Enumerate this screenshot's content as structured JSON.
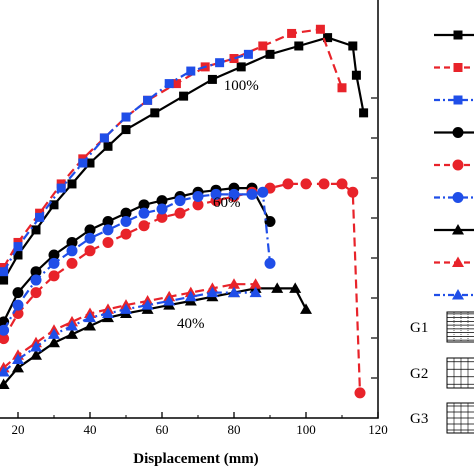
{
  "chart_data": {
    "type": "line",
    "xlabel": "Displacement (mm)",
    "ylabel": "",
    "xlim": [
      15,
      120
    ],
    "ylim": [
      0,
      1
    ],
    "x_ticks": [
      20,
      40,
      60,
      80,
      100,
      120
    ],
    "grid": false,
    "legend_placement": "right, outside plot",
    "annotations": [
      {
        "text": "100%",
        "x": 82,
        "y": 0.785
      },
      {
        "text": "60%",
        "x": 78,
        "y": 0.505
      },
      {
        "text": "40%",
        "x": 68,
        "y": 0.215
      }
    ],
    "series": [
      {
        "group": "100%",
        "color": "#000000",
        "dash": "solid",
        "marker": "square",
        "x": [
          16,
          20,
          25,
          30,
          35,
          40,
          45,
          50,
          58,
          66,
          74,
          82,
          90,
          98,
          106,
          113,
          114,
          116
        ],
        "y": [
          0.33,
          0.39,
          0.45,
          0.51,
          0.56,
          0.61,
          0.65,
          0.69,
          0.73,
          0.77,
          0.81,
          0.84,
          0.87,
          0.89,
          0.91,
          0.89,
          0.82,
          0.73
        ]
      },
      {
        "group": "100%",
        "color": "#e8232a",
        "dash": "dashed",
        "marker": "square",
        "x": [
          16,
          20,
          26,
          32,
          38,
          44,
          50,
          56,
          64,
          72,
          80,
          88,
          96,
          104,
          110
        ],
        "y": [
          0.36,
          0.42,
          0.49,
          0.56,
          0.62,
          0.67,
          0.72,
          0.76,
          0.8,
          0.84,
          0.86,
          0.89,
          0.92,
          0.93,
          0.79
        ]
      },
      {
        "group": "100%",
        "color": "#1f4ee8",
        "dash": "dashdot",
        "marker": "square",
        "x": [
          16,
          20,
          26,
          32,
          38,
          44,
          50,
          56,
          62,
          68,
          76,
          84
        ],
        "y": [
          0.35,
          0.41,
          0.48,
          0.55,
          0.61,
          0.67,
          0.72,
          0.76,
          0.8,
          0.83,
          0.85,
          0.87
        ]
      },
      {
        "group": "60%",
        "color": "#000000",
        "dash": "solid",
        "marker": "circle",
        "x": [
          16,
          20,
          25,
          30,
          35,
          40,
          45,
          50,
          55,
          60,
          65,
          70,
          75,
          80,
          85,
          90
        ],
        "y": [
          0.23,
          0.3,
          0.35,
          0.39,
          0.42,
          0.45,
          0.47,
          0.49,
          0.51,
          0.52,
          0.53,
          0.54,
          0.545,
          0.55,
          0.55,
          0.47
        ]
      },
      {
        "group": "60%",
        "color": "#e8232a",
        "dash": "dashed",
        "marker": "circle",
        "x": [
          16,
          20,
          25,
          30,
          35,
          40,
          45,
          50,
          55,
          60,
          65,
          70,
          75,
          80,
          85,
          90,
          95,
          100,
          105,
          110,
          113,
          115
        ],
        "y": [
          0.19,
          0.25,
          0.3,
          0.34,
          0.37,
          0.4,
          0.42,
          0.44,
          0.46,
          0.48,
          0.49,
          0.51,
          0.52,
          0.53,
          0.54,
          0.55,
          0.56,
          0.56,
          0.56,
          0.56,
          0.54,
          0.06
        ]
      },
      {
        "group": "60%",
        "color": "#1f4ee8",
        "dash": "dashdot",
        "marker": "circle",
        "x": [
          16,
          20,
          25,
          30,
          35,
          40,
          45,
          50,
          55,
          60,
          65,
          70,
          75,
          80,
          85,
          88,
          90
        ],
        "y": [
          0.21,
          0.27,
          0.33,
          0.37,
          0.4,
          0.43,
          0.45,
          0.47,
          0.49,
          0.5,
          0.52,
          0.53,
          0.535,
          0.535,
          0.535,
          0.54,
          0.37
        ]
      },
      {
        "group": "40%",
        "color": "#000000",
        "dash": "solid",
        "marker": "triangle",
        "x": [
          16,
          20,
          25,
          30,
          35,
          40,
          45,
          50,
          56,
          62,
          68,
          74,
          80,
          86,
          92,
          97,
          100
        ],
        "y": [
          0.08,
          0.12,
          0.15,
          0.18,
          0.2,
          0.22,
          0.24,
          0.25,
          0.26,
          0.27,
          0.28,
          0.29,
          0.3,
          0.31,
          0.31,
          0.31,
          0.26
        ]
      },
      {
        "group": "40%",
        "color": "#e8232a",
        "dash": "dashed",
        "marker": "triangle",
        "x": [
          16,
          20,
          25,
          30,
          35,
          40,
          45,
          50,
          56,
          62,
          68,
          74,
          80,
          86
        ],
        "y": [
          0.12,
          0.15,
          0.18,
          0.21,
          0.23,
          0.25,
          0.26,
          0.27,
          0.28,
          0.29,
          0.3,
          0.31,
          0.32,
          0.32
        ]
      },
      {
        "group": "40%",
        "color": "#1f4ee8",
        "dash": "dashdot",
        "marker": "triangle",
        "x": [
          16,
          20,
          25,
          30,
          35,
          40,
          45,
          50,
          56,
          62,
          68,
          74,
          80,
          86
        ],
        "y": [
          0.11,
          0.14,
          0.17,
          0.2,
          0.22,
          0.24,
          0.25,
          0.26,
          0.27,
          0.28,
          0.29,
          0.3,
          0.3,
          0.3
        ]
      }
    ],
    "legend": [
      {
        "color": "#000000",
        "dash": "solid",
        "marker": "square"
      },
      {
        "color": "#e8232a",
        "dash": "dashed",
        "marker": "square"
      },
      {
        "color": "#1f4ee8",
        "dash": "dashdot",
        "marker": "square"
      },
      {
        "color": "#000000",
        "dash": "solid",
        "marker": "circle"
      },
      {
        "color": "#e8232a",
        "dash": "dashed",
        "marker": "circle"
      },
      {
        "color": "#1f4ee8",
        "dash": "dashdot",
        "marker": "circle"
      },
      {
        "color": "#000000",
        "dash": "solid",
        "marker": "triangle"
      },
      {
        "color": "#e8232a",
        "dash": "dashed",
        "marker": "triangle"
      },
      {
        "color": "#1f4ee8",
        "dash": "dashdot",
        "marker": "triangle"
      }
    ],
    "group_labels": [
      "G1",
      "G2",
      "G3"
    ]
  }
}
